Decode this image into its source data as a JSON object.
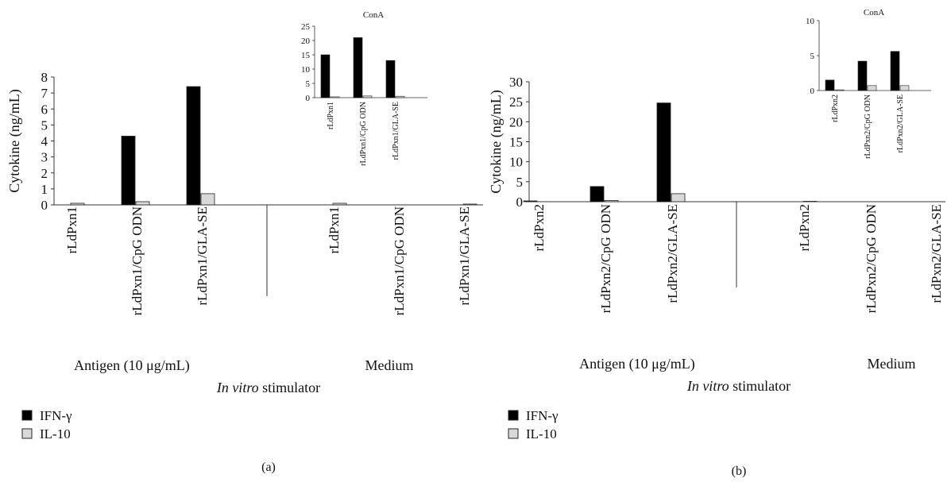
{
  "chart_data": [
    {
      "type": "bar",
      "panel_label": "(a)",
      "ylabel": "Cytokine (ng/mL)",
      "ylim": [
        0,
        8
      ],
      "yticks": [
        0,
        1,
        2,
        3,
        4,
        5,
        6,
        7,
        8
      ],
      "categories": [
        "rLdPxn1",
        "rLdPxn1/CpG ODN",
        "rLdPxn1/GLA-SE",
        "rLdPxn1",
        "rLdPxn1/CpG ODN",
        "rLdPxn1/GLA-SE"
      ],
      "groups": [
        {
          "label": "Antigen (10 μg/mL)",
          "categories": [
            "rLdPxn1",
            "rLdPxn1/CpG ODN",
            "rLdPxn1/GLA-SE"
          ]
        },
        {
          "label": "Medium",
          "categories": [
            "rLdPxn1",
            "rLdPxn1/CpG ODN",
            "rLdPxn1/GLA-SE"
          ]
        }
      ],
      "xlabel": "In vitro stimulator",
      "series": [
        {
          "name": "IFN-γ",
          "color": "#000000",
          "values": [
            0.0,
            4.3,
            7.4,
            0.0,
            0.0,
            0.0
          ]
        },
        {
          "name": "IL-10",
          "color": "#d9d9d9",
          "values": [
            0.1,
            0.2,
            0.7,
            0.1,
            0.0,
            0.05
          ]
        }
      ],
      "legend_position": "bottom-left",
      "inset": {
        "title": "ConA",
        "ylim": [
          0,
          25
        ],
        "yticks": [
          0,
          5,
          10,
          15,
          20,
          25
        ],
        "categories": [
          "rLdPxn1",
          "rLdPxn1/CpG ODN",
          "rLdPxn1/GLA-SE"
        ],
        "series": [
          {
            "name": "IFN-γ",
            "values": [
              15,
              21,
              13
            ]
          },
          {
            "name": "IL-10",
            "values": [
              0.3,
              0.6,
              0.5
            ]
          }
        ]
      }
    },
    {
      "type": "bar",
      "panel_label": "(b)",
      "ylabel": "Cytokine (ng/mL)",
      "ylim": [
        0,
        30
      ],
      "yticks": [
        0,
        5,
        10,
        15,
        20,
        25,
        30
      ],
      "categories": [
        "rLdPxn2",
        "rLdPxn2/CpG ODN",
        "rLdPxn2/GLA-SE",
        "rLdPxn2",
        "rLdPxn2/CpG ODN",
        "rLdPxn2/GLA-SE"
      ],
      "groups": [
        {
          "label": "Antigen (10 μg/mL)",
          "categories": [
            "rLdPxn2",
            "rLdPxn2/CpG ODN",
            "rLdPxn2/GLA-SE"
          ]
        },
        {
          "label": "Medium",
          "categories": [
            "rLdPxn2",
            "rLdPxn2/CpG ODN",
            "rLdPxn2/GLA-SE"
          ]
        }
      ],
      "xlabel": "In vitro stimulator",
      "series": [
        {
          "name": "IFN-γ",
          "color": "#000000",
          "values": [
            0.2,
            3.8,
            24.7,
            0.0,
            0.0,
            0.0
          ]
        },
        {
          "name": "IL-10",
          "color": "#d9d9d9",
          "values": [
            0.0,
            0.3,
            2.0,
            0.1,
            0.0,
            0.0
          ]
        }
      ],
      "legend_position": "bottom-left",
      "inset": {
        "title": "ConA",
        "ylim": [
          0,
          10
        ],
        "yticks": [
          0,
          5,
          10
        ],
        "categories": [
          "rLdPxn2",
          "rLdPxn2/CpG ODN",
          "rLdPxn2/GLA-SE"
        ],
        "series": [
          {
            "name": "IFN-γ",
            "values": [
              1.5,
              4.2,
              5.6
            ]
          },
          {
            "name": "IL-10",
            "values": [
              0.1,
              0.7,
              0.7
            ]
          }
        ]
      }
    }
  ]
}
